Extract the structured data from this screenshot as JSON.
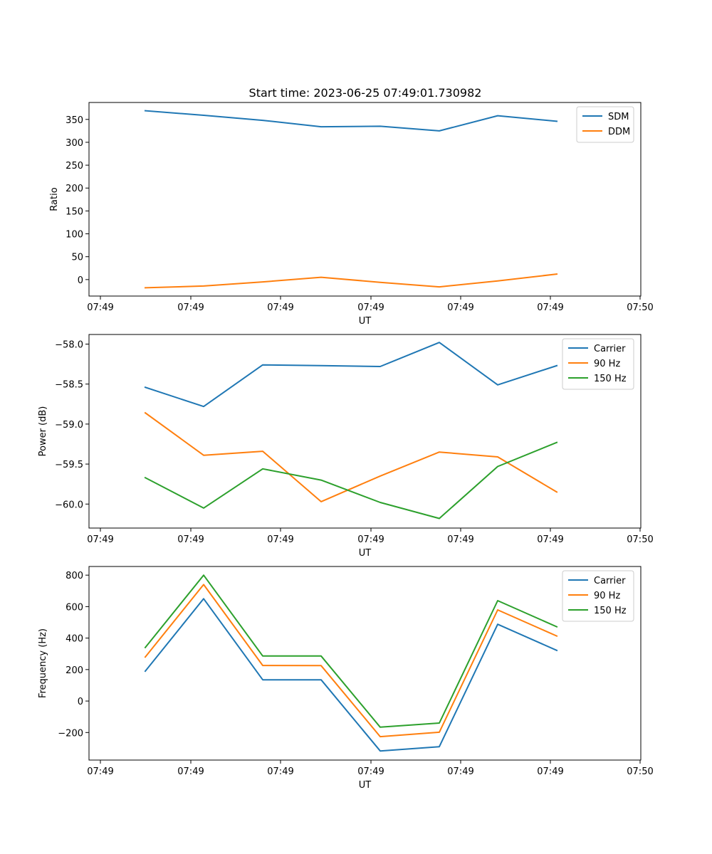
{
  "figure": {
    "title": "Start time: 2023-06-25 07:49:01.730982"
  },
  "colors": {
    "blue": "#1f77b4",
    "orange": "#ff7f0e",
    "green": "#2ca02c"
  },
  "chart_data": [
    {
      "type": "line",
      "title": "Start time: 2023-06-25 07:49:01.730982",
      "xlabel": "UT",
      "ylabel": "Ratio",
      "x_tick_labels": [
        "07:49",
        "07:49",
        "07:49",
        "07:49",
        "07:49",
        "07:49",
        "07:50"
      ],
      "y_ticks": [
        0,
        50,
        100,
        150,
        200,
        250,
        300,
        350
      ],
      "ylim": [
        -36,
        387
      ],
      "legend_position": "upper-right",
      "grid": false,
      "series": [
        {
          "name": "SDM",
          "color": "#1f77b4",
          "values": [
            369,
            359,
            348,
            334,
            335,
            325,
            358,
            346
          ]
        },
        {
          "name": "DDM",
          "color": "#ff7f0e",
          "values": [
            -18,
            -14,
            -5,
            5,
            -6,
            -16,
            -3,
            12
          ]
        }
      ]
    },
    {
      "type": "line",
      "xlabel": "UT",
      "ylabel": "Power (dB)",
      "x_tick_labels": [
        "07:49",
        "07:49",
        "07:49",
        "07:49",
        "07:49",
        "07:49",
        "07:50"
      ],
      "y_ticks": [
        -60.0,
        -59.5,
        -59.0,
        -58.5,
        -58.0
      ],
      "ylim": [
        -60.3,
        -57.88
      ],
      "legend_position": "upper-right",
      "grid": false,
      "series": [
        {
          "name": "Carrier",
          "color": "#1f77b4",
          "values": [
            -58.54,
            -58.78,
            -58.26,
            -58.27,
            -58.28,
            -57.98,
            -58.51,
            -58.27
          ]
        },
        {
          "name": "90 Hz",
          "color": "#ff7f0e",
          "values": [
            -58.86,
            -59.39,
            -59.34,
            -59.97,
            -59.65,
            -59.35,
            -59.41,
            -59.85
          ]
        },
        {
          "name": "150 Hz",
          "color": "#2ca02c",
          "values": [
            -59.67,
            -60.05,
            -59.56,
            -59.7,
            -59.98,
            -60.18,
            -59.53,
            -59.23
          ]
        }
      ]
    },
    {
      "type": "line",
      "xlabel": "UT",
      "ylabel": "Frequency (Hz)",
      "x_tick_labels": [
        "07:49",
        "07:49",
        "07:49",
        "07:49",
        "07:49",
        "07:49",
        "07:50"
      ],
      "y_ticks": [
        -200,
        0,
        200,
        400,
        600,
        800
      ],
      "ylim": [
        -375,
        855
      ],
      "legend_position": "upper-right",
      "grid": false,
      "series": [
        {
          "name": "Carrier",
          "color": "#1f77b4",
          "values": [
            190,
            650,
            135,
            135,
            -317,
            -290,
            488,
            322
          ]
        },
        {
          "name": "90 Hz",
          "color": "#ff7f0e",
          "values": [
            280,
            740,
            226,
            225,
            -226,
            -198,
            579,
            413
          ]
        },
        {
          "name": "150 Hz",
          "color": "#2ca02c",
          "values": [
            340,
            800,
            286,
            286,
            -166,
            -140,
            638,
            472
          ]
        }
      ]
    }
  ]
}
